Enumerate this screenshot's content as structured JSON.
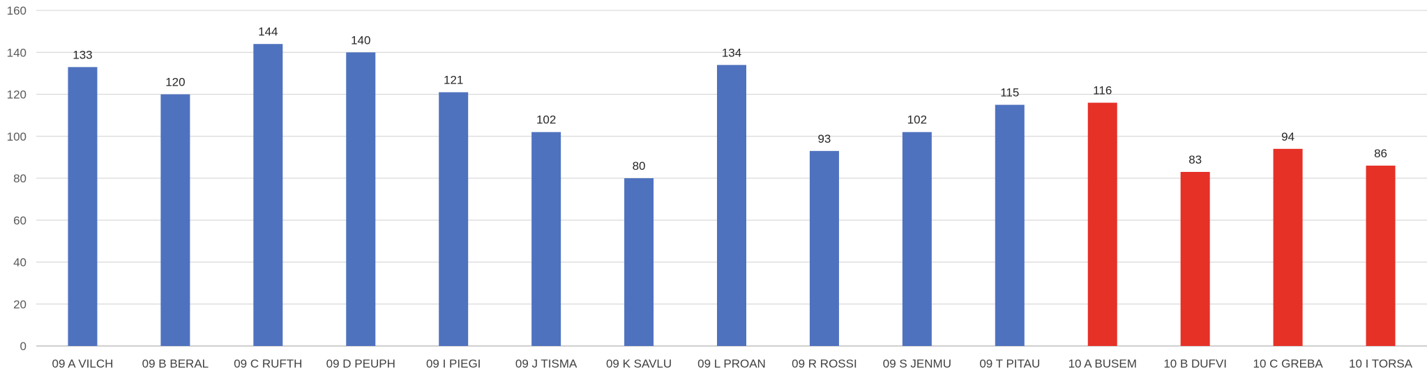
{
  "chart_data": {
    "type": "bar",
    "title": "",
    "xlabel": "",
    "ylabel": "",
    "ylim": [
      0,
      160
    ],
    "yticks": [
      0,
      20,
      40,
      60,
      80,
      100,
      120,
      140,
      160
    ],
    "grid": true,
    "legend": "none",
    "data_labels": true,
    "categories": [
      "09 A VILCH",
      "09 B BERAL",
      "09 C RUFTH",
      "09 D PEUPH",
      "09 I PIEGI",
      "09 J TISMA",
      "09 K SAVLU",
      "09 L PROAN",
      "09 R ROSSI",
      "09 S JENMU",
      "09 T PITAU",
      "10 A BUSEM",
      "10 B DUFVI",
      "10 C GREBA",
      "10 I TORSA"
    ],
    "values": [
      133,
      120,
      144,
      140,
      121,
      102,
      80,
      134,
      93,
      102,
      115,
      116,
      83,
      94,
      86
    ],
    "bar_colors": [
      "#4f72bf",
      "#4f72bf",
      "#4f72bf",
      "#4f72bf",
      "#4f72bf",
      "#4f72bf",
      "#4f72bf",
      "#4f72bf",
      "#4f72bf",
      "#4f72bf",
      "#4f72bf",
      "#e63127",
      "#e63127",
      "#e63127",
      "#e63127"
    ],
    "colors": {
      "grade_09": "#4f72bf",
      "grade_10": "#e63127",
      "gridline": "#d9d9d9",
      "tick_text": "#595959"
    }
  }
}
